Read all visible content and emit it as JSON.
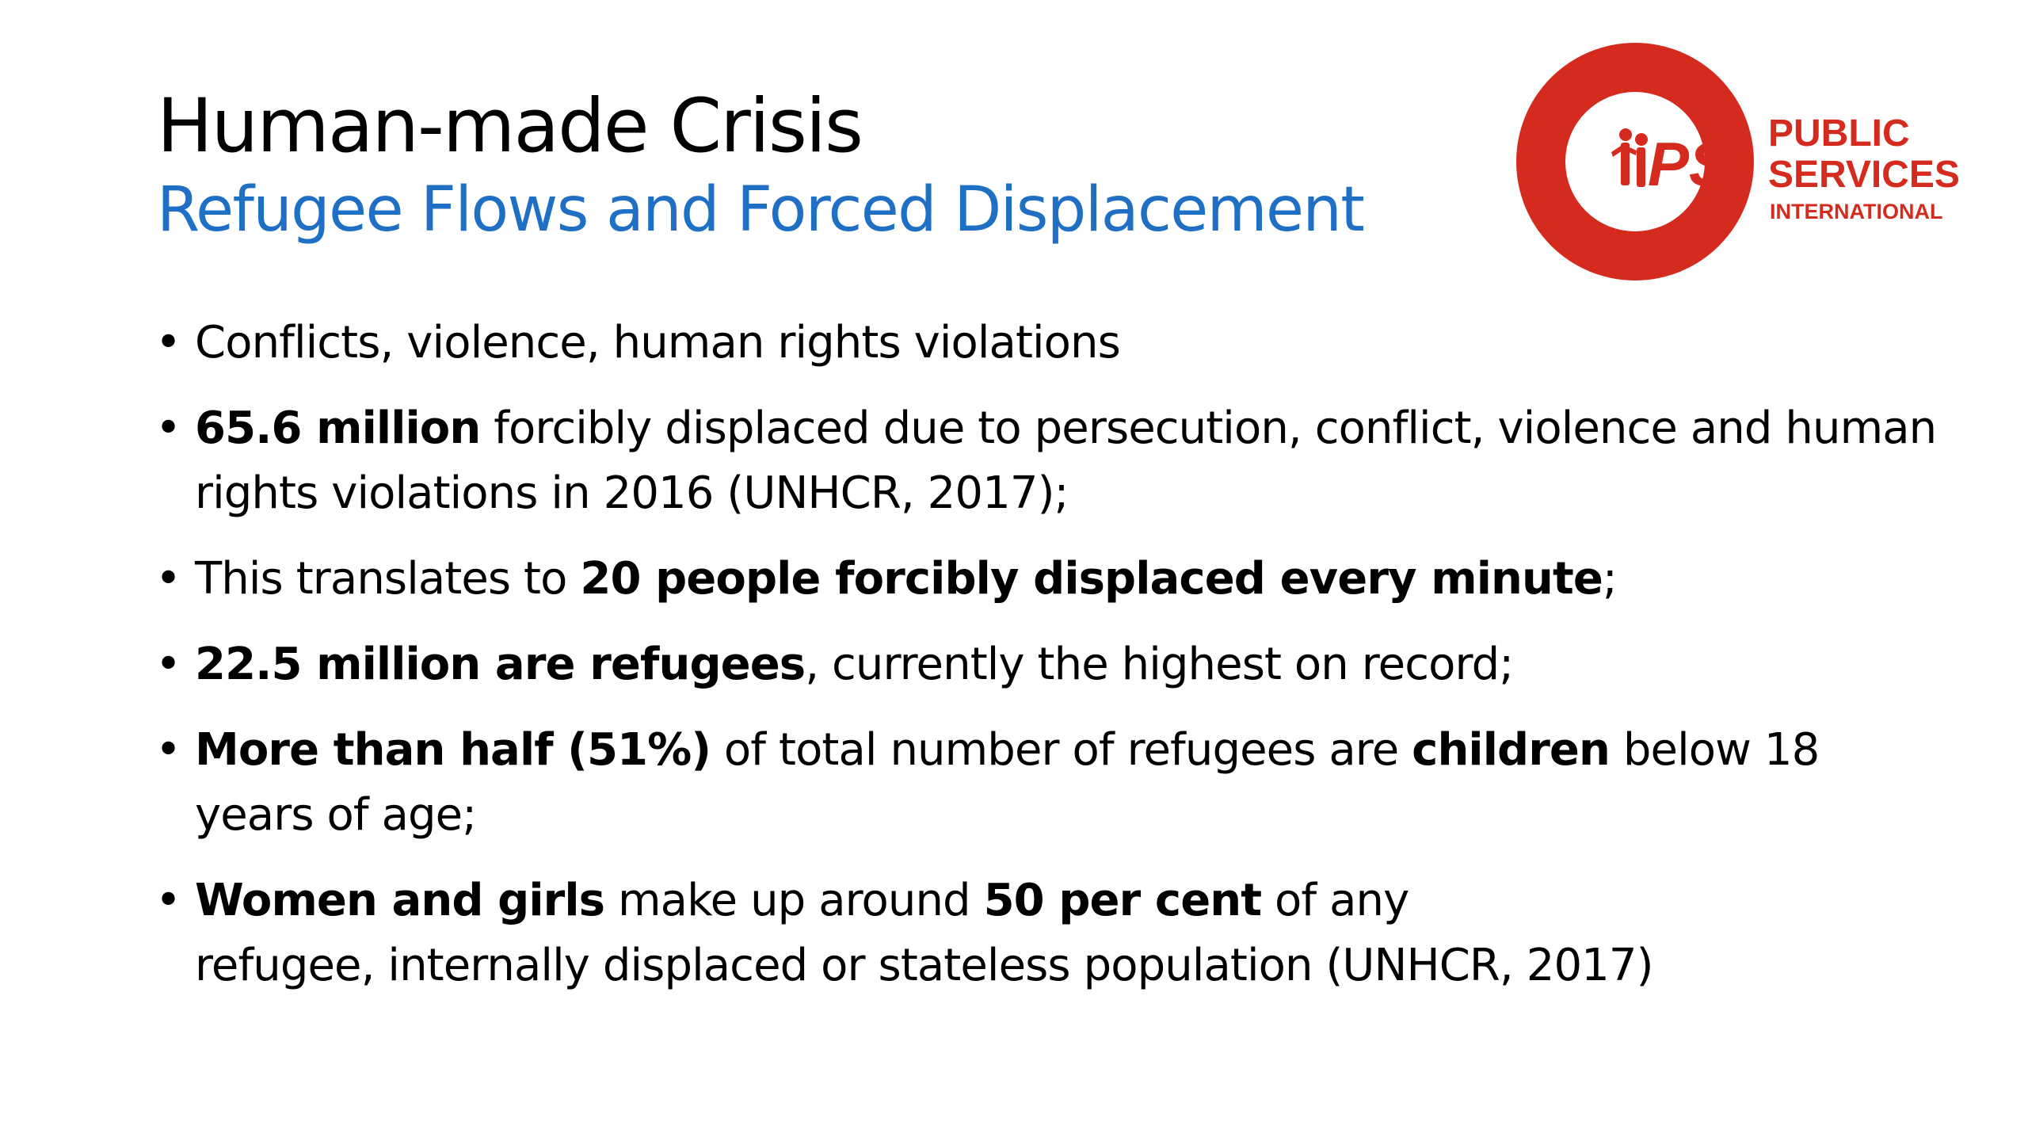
{
  "slide": {
    "title": "Human-made Crisis",
    "subtitle": "Refugee Flows and Forced Displacement"
  },
  "logo": {
    "acronym": "PSI",
    "line1": "PUBLIC",
    "line2": "SERVICES",
    "line3": "INTERNATIONAL",
    "color": "#d52b1e"
  },
  "bullets": [
    {
      "t1": "Conflicts, violence, human rights violations"
    },
    {
      "b1": "65.6 million",
      "t1": " forcibly displaced due to persecution, conflict, violence and human rights violations in 2016 (UNHCR, 2017);"
    },
    {
      "t1": "This translates to ",
      "b1": "20 people forcibly displaced every minute",
      "t2": ";"
    },
    {
      "b1": "22.5 million are refugees",
      "t1": ", currently the highest on record;"
    },
    {
      "b1": "More than half (51%)",
      "t1": " of total number of refugees are ",
      "b2": "children",
      "t2": " below 18 years of age;"
    },
    {
      "b1": "Women and girls",
      "t1": " make up around ",
      "b2": "50 per cent",
      "t2": " of any",
      "t3": "refugee, internally displaced or stateless population (UNHCR, 2017)"
    }
  ],
  "colors": {
    "title": "#000000",
    "subtitle": "#1f6fc5",
    "brand_red": "#d52b1e"
  }
}
